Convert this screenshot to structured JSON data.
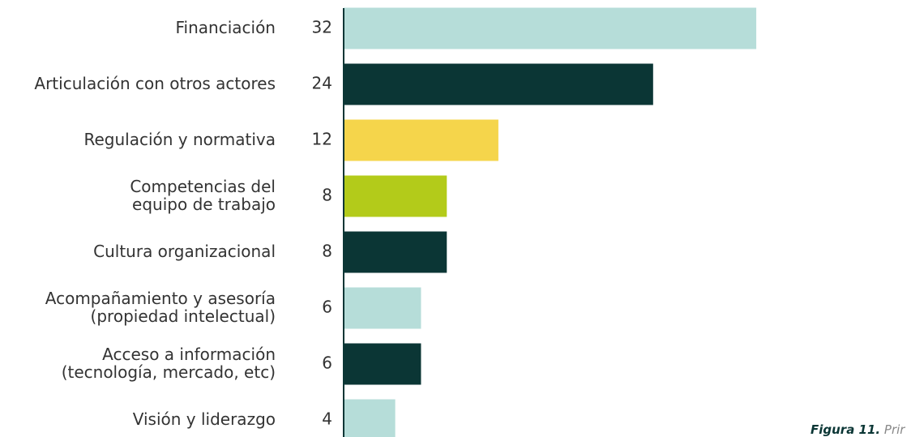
{
  "chart_data": {
    "type": "bar",
    "orientation": "horizontal",
    "categories": [
      [
        "Financiación"
      ],
      [
        "Articulación con otros actores"
      ],
      [
        "Regulación y normativa"
      ],
      [
        "Competencias del",
        "equipo de trabajo"
      ],
      [
        "Cultura organizacional"
      ],
      [
        "Acompañamiento y asesoría",
        "(propiedad intelectual)"
      ],
      [
        "Acceso a información",
        "(tecnología, mercado, etc)"
      ],
      [
        "Visión y liderazgo"
      ]
    ],
    "values": [
      32,
      24,
      12,
      8,
      8,
      6,
      6,
      4
    ],
    "colors": [
      "#b6ddd9",
      "#0b3635",
      "#f5d54b",
      "#b3cb1a",
      "#0b3635",
      "#b6ddd9",
      "#0b3635",
      "#b6ddd9"
    ],
    "xlim": [
      0,
      44
    ],
    "caption_label": "Figura 11.",
    "caption_text": "Prir"
  }
}
